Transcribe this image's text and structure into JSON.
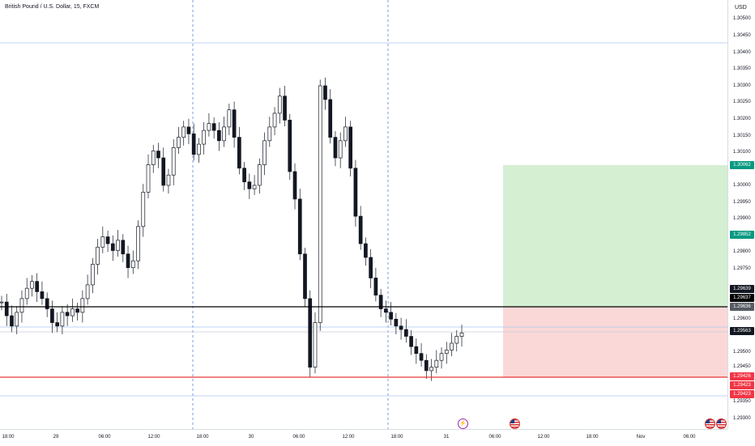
{
  "title": "British Pound / U.S. Dollar, 15, FXCM",
  "currency": "USD",
  "price_ticks": [
    "1.30500",
    "1.30450",
    "1.30400",
    "1.30350",
    "1.30300",
    "1.30250",
    "1.30200",
    "1.30150",
    "1.30100",
    "1.30050",
    "1.30000",
    "1.29950",
    "1.29900",
    "1.29850",
    "1.29800",
    "1.29750",
    "1.29700",
    "1.29650",
    "1.29600",
    "1.29550",
    "1.29500",
    "1.29450",
    "1.29400",
    "1.29350",
    "1.29300"
  ],
  "price_labels": {
    "take_profit": "1.30062",
    "target_mid": "1.29852",
    "level_1": "1.29639",
    "level_2": "1.29637",
    "entry": "1.29636",
    "current": "1.29563",
    "stop_1": "1.29426",
    "stop_2": "1.29423",
    "stop_3": "1.29423"
  },
  "time_ticks": [
    "18:00",
    "29",
    "06:00",
    "12:00",
    "18:00",
    "30",
    "06:00",
    "12:00",
    "18:00",
    "31",
    "06:00",
    "12:00",
    "18:00",
    "Nov",
    "06:00"
  ],
  "colors": {
    "up": "#131722",
    "down": "#131722",
    "profit_zone": "#d5efd3",
    "loss_zone": "#fbd8d8",
    "profit_label": "#089981",
    "loss_label": "#f23645",
    "entry_line": "#000000",
    "stop_line": "#e53935",
    "current_label": "#131722"
  },
  "events": [
    {
      "icon": "lightning-icon"
    },
    {
      "icon": "us-flag-icon"
    },
    {
      "icon": "us-flag-icon"
    },
    {
      "icon": "us-flag-icon"
    }
  ],
  "chart_data": {
    "type": "line",
    "symbol": "GBPUSD",
    "interval": "15",
    "ylim": [
      1.2928,
      1.3053
    ],
    "grid": false,
    "long_position": {
      "entry": 1.29636,
      "take_profit": 1.30062,
      "stop_loss": 1.29423
    },
    "series": [
      {
        "values": [
          1.2965,
          1.2961,
          1.2958,
          1.2962,
          1.2966,
          1.2969,
          1.2971,
          1.2968,
          1.2966,
          1.2963,
          1.2959,
          1.2958,
          1.2962,
          1.2961,
          1.2963,
          1.2962,
          1.2966,
          1.297,
          1.2976,
          1.2981,
          1.2984,
          1.2982,
          1.298,
          1.2983,
          1.2979,
          1.2975,
          1.2977,
          1.2987,
          1.2997,
          1.3005,
          1.3009,
          1.3007,
          1.2999,
          1.3002,
          1.301,
          1.3013,
          1.3016,
          1.3014,
          1.3008,
          1.3011,
          1.3015,
          1.3017,
          1.3015,
          1.3012,
          1.3016,
          1.3021,
          1.3013,
          1.3004,
          1.3,
          1.2998,
          1.2999,
          1.3005,
          1.3012,
          1.3016,
          1.302,
          1.3025,
          1.3018,
          1.3003,
          1.2995,
          1.2979,
          1.2966,
          1.2946,
          1.2959,
          1.3028,
          1.3024,
          1.3013,
          1.3007,
          1.3012,
          1.3016,
          1.3004,
          1.299,
          1.2982,
          1.2978,
          1.2972,
          1.2967,
          1.2963,
          1.2962,
          1.296,
          1.2958,
          1.2957,
          1.2955,
          1.2952,
          1.295,
          1.2948,
          1.2945,
          1.2946,
          1.2948,
          1.295,
          1.2951,
          1.2953,
          1.2955,
          1.2956
        ]
      }
    ]
  }
}
